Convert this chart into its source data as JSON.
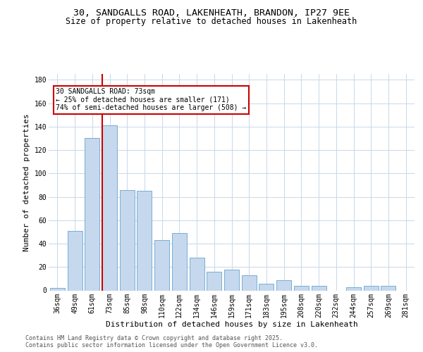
{
  "title_line1": "30, SANDGALLS ROAD, LAKENHEATH, BRANDON, IP27 9EE",
  "title_line2": "Size of property relative to detached houses in Lakenheath",
  "xlabel": "Distribution of detached houses by size in Lakenheath",
  "ylabel": "Number of detached properties",
  "categories": [
    "36sqm",
    "49sqm",
    "61sqm",
    "73sqm",
    "85sqm",
    "98sqm",
    "110sqm",
    "122sqm",
    "134sqm",
    "146sqm",
    "159sqm",
    "171sqm",
    "183sqm",
    "195sqm",
    "208sqm",
    "220sqm",
    "232sqm",
    "244sqm",
    "257sqm",
    "269sqm",
    "281sqm"
  ],
  "values": [
    2,
    51,
    130,
    141,
    86,
    85,
    43,
    49,
    28,
    16,
    18,
    13,
    6,
    9,
    4,
    4,
    0,
    3,
    4,
    4,
    0
  ],
  "bar_color": "#c5d8ed",
  "bar_edge_color": "#7aadd4",
  "vline_index": 3,
  "vline_color": "#cc0000",
  "annotation_text": "30 SANDGALLS ROAD: 73sqm\n← 25% of detached houses are smaller (171)\n74% of semi-detached houses are larger (508) →",
  "annotation_box_color": "#cc0000",
  "bg_color": "#ffffff",
  "grid_color": "#c8d8e8",
  "footer_text": "Contains HM Land Registry data © Crown copyright and database right 2025.\nContains public sector information licensed under the Open Government Licence v3.0.",
  "ylim": [
    0,
    185
  ],
  "yticks": [
    0,
    20,
    40,
    60,
    80,
    100,
    120,
    140,
    160,
    180
  ],
  "title_fontsize": 9.5,
  "subtitle_fontsize": 8.5,
  "ylabel_fontsize": 8,
  "xlabel_fontsize": 8,
  "tick_fontsize": 7,
  "annotation_fontsize": 7,
  "footer_fontsize": 6
}
